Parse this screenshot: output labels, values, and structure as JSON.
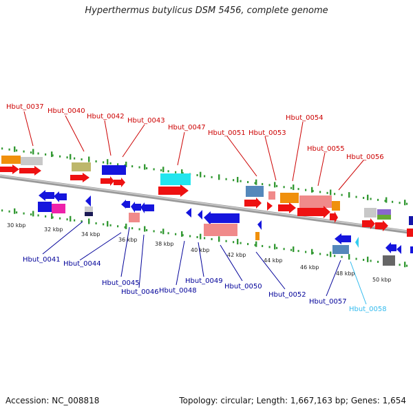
{
  "title": "Hyperthermus butylicus DSM 5456, complete genome",
  "footer": {
    "accession": "Accession: NC_008818",
    "summary": "Topology: circular; Length: 1,667,163 bp; Genes: 1,654"
  },
  "colors": {
    "top_label": "#cc0000",
    "bottom_label": "#000099",
    "highlight_label": "#33bbee",
    "backbone": "#888888",
    "tick_green": "#339933"
  },
  "ruler": [
    "30 kbp",
    "32 kbp",
    "34 kbp",
    "36 kbp",
    "38 kbp",
    "40 kbp",
    "42 kbp",
    "44 kbp",
    "46 kbp",
    "48 kbp",
    "50 kbp"
  ],
  "top_labels": [
    "Hbut_0037",
    "Hbut_0040",
    "Hbut_0042",
    "Hbut_0043",
    "Hbut_0047",
    "Hbut_0051",
    "Hbut_0053",
    "Hbut_0054",
    "Hbut_0055",
    "Hbut_0056"
  ],
  "bottom_labels": [
    "Hbut_0041",
    "Hbut_0044",
    "Hbut_0045",
    "Hbut_0046",
    "Hbut_0048",
    "Hbut_0049",
    "Hbut_0050",
    "Hbut_0052",
    "Hbut_0057",
    "Hbut_0058"
  ]
}
